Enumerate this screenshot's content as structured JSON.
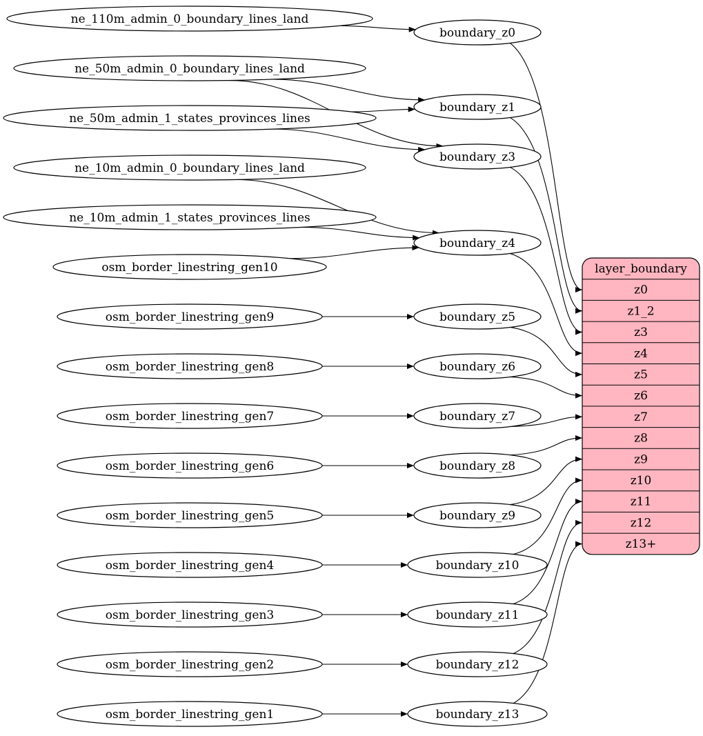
{
  "colors": {
    "record_fill": "#ffb6c1",
    "stroke": "#000000",
    "background": "#ffffff"
  },
  "sources": [
    {
      "id": "s0",
      "label": "ne_110m_admin_0_boundary_lines_land"
    },
    {
      "id": "s1",
      "label": "ne_50m_admin_0_boundary_lines_land"
    },
    {
      "id": "s2",
      "label": "ne_50m_admin_1_states_provinces_lines"
    },
    {
      "id": "s3",
      "label": "ne_10m_admin_0_boundary_lines_land"
    },
    {
      "id": "s4",
      "label": "ne_10m_admin_1_states_provinces_lines"
    },
    {
      "id": "s5",
      "label": "osm_border_linestring_gen10"
    },
    {
      "id": "s6",
      "label": "osm_border_linestring_gen9"
    },
    {
      "id": "s7",
      "label": "osm_border_linestring_gen8"
    },
    {
      "id": "s8",
      "label": "osm_border_linestring_gen7"
    },
    {
      "id": "s9",
      "label": "osm_border_linestring_gen6"
    },
    {
      "id": "s10",
      "label": "osm_border_linestring_gen5"
    },
    {
      "id": "s11",
      "label": "osm_border_linestring_gen4"
    },
    {
      "id": "s12",
      "label": "osm_border_linestring_gen3"
    },
    {
      "id": "s13",
      "label": "osm_border_linestring_gen2"
    },
    {
      "id": "s14",
      "label": "osm_border_linestring_gen1"
    }
  ],
  "boundaries": [
    {
      "id": "b0",
      "label": "boundary_z0"
    },
    {
      "id": "b1",
      "label": "boundary_z1"
    },
    {
      "id": "b3",
      "label": "boundary_z3"
    },
    {
      "id": "b4",
      "label": "boundary_z4"
    },
    {
      "id": "b5",
      "label": "boundary_z5"
    },
    {
      "id": "b6",
      "label": "boundary_z6"
    },
    {
      "id": "b7",
      "label": "boundary_z7"
    },
    {
      "id": "b8",
      "label": "boundary_z8"
    },
    {
      "id": "b9",
      "label": "boundary_z9"
    },
    {
      "id": "b10",
      "label": "boundary_z10"
    },
    {
      "id": "b11",
      "label": "boundary_z11"
    },
    {
      "id": "b12",
      "label": "boundary_z12"
    },
    {
      "id": "b13",
      "label": "boundary_z13"
    }
  ],
  "record": {
    "title": "layer_boundary",
    "ports": [
      "z0",
      "z1_2",
      "z3",
      "z4",
      "z5",
      "z6",
      "z7",
      "z8",
      "z9",
      "z10",
      "z11",
      "z12",
      "z13+"
    ]
  },
  "edges_to_boundary": [
    [
      "s0",
      "b0"
    ],
    [
      "s1",
      "b1"
    ],
    [
      "s1",
      "b3"
    ],
    [
      "s2",
      "b1"
    ],
    [
      "s2",
      "b3"
    ],
    [
      "s3",
      "b4"
    ],
    [
      "s4",
      "b4"
    ],
    [
      "s5",
      "b4"
    ],
    [
      "s6",
      "b5"
    ],
    [
      "s7",
      "b6"
    ],
    [
      "s8",
      "b7"
    ],
    [
      "s9",
      "b8"
    ],
    [
      "s10",
      "b9"
    ],
    [
      "s11",
      "b10"
    ],
    [
      "s12",
      "b11"
    ],
    [
      "s13",
      "b12"
    ],
    [
      "s14",
      "b13"
    ]
  ],
  "edges_to_record": [
    [
      "b0",
      "z0"
    ],
    [
      "b1",
      "z1_2"
    ],
    [
      "b3",
      "z3"
    ],
    [
      "b4",
      "z4"
    ],
    [
      "b5",
      "z5"
    ],
    [
      "b6",
      "z6"
    ],
    [
      "b7",
      "z7"
    ],
    [
      "b8",
      "z8"
    ],
    [
      "b9",
      "z9"
    ],
    [
      "b10",
      "z10"
    ],
    [
      "b11",
      "z11"
    ],
    [
      "b12",
      "z12"
    ],
    [
      "b13",
      "z13+"
    ]
  ]
}
